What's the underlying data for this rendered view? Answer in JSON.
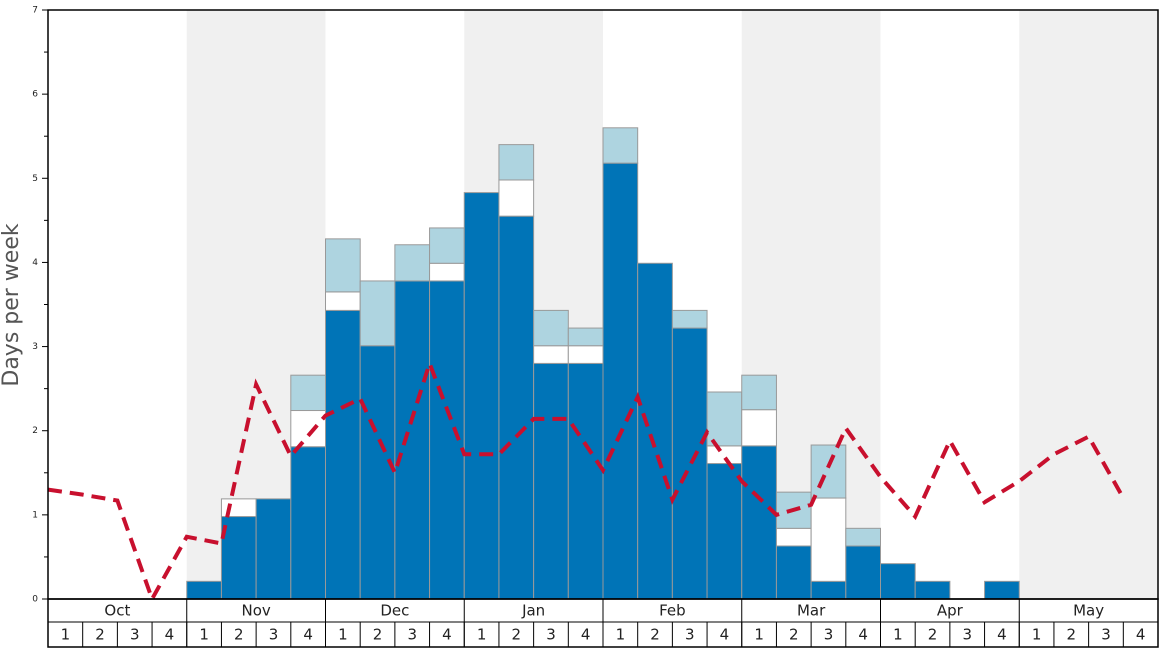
{
  "chart_data": {
    "type": "bar",
    "ylabel": "Days per week",
    "months": [
      "Oct",
      "Nov",
      "Dec",
      "Jan",
      "Feb",
      "Mar",
      "Apr",
      "May"
    ],
    "weeks": [
      "1",
      "2",
      "3",
      "4"
    ],
    "ylim": [
      0,
      7
    ],
    "yticks": [
      0,
      1,
      2,
      3,
      4,
      5,
      6,
      7
    ],
    "yminorticks": [
      0.5,
      1.5,
      2.5,
      3.5,
      4.5,
      5.5,
      6.5
    ],
    "shaded_color": "#f0f0f0",
    "series": [
      {
        "color": "#0074b7",
        "values": [
          0,
          0,
          0,
          0,
          0.21,
          0.98,
          1.19,
          1.81,
          3.43,
          3.01,
          3.78,
          3.78,
          4.83,
          4.55,
          2.8,
          2.8,
          5.18,
          3.99,
          3.22,
          1.61,
          1.82,
          0.63,
          0.21,
          0.63,
          0.42,
          0.21,
          0,
          0.21,
          0,
          0,
          0,
          0
        ]
      },
      {
        "color": "#ffffff",
        "values": [
          0,
          0,
          0,
          0,
          0,
          0.21,
          0,
          0.43,
          0.22,
          0,
          0,
          0.21,
          0,
          0.43,
          0.21,
          0.21,
          0,
          0,
          0,
          0.21,
          0.43,
          0.21,
          0.99,
          0,
          0,
          0,
          0,
          0,
          0,
          0,
          0,
          0
        ]
      },
      {
        "color": "#aed4e0",
        "values": [
          0,
          0,
          0,
          0,
          0,
          0,
          0,
          0.42,
          0.63,
          0.77,
          0.43,
          0.42,
          0,
          0.42,
          0.42,
          0.21,
          0.42,
          0,
          0.21,
          0.64,
          0.41,
          0.43,
          0.63,
          0.21,
          0,
          0,
          0,
          0,
          0,
          0,
          0,
          0
        ]
      }
    ],
    "line": {
      "type": "line",
      "color": "#c8102e",
      "values": [
        1.3,
        1.24,
        1.17,
        0,
        0.74,
        0.66,
        2.55,
        1.7,
        2.18,
        2.38,
        1.5,
        2.8,
        1.72,
        1.72,
        2.14,
        2.14,
        1.53,
        2.4,
        1.18,
        1.98,
        1.4,
        1.0,
        1.12,
        2.03,
        1.45,
        0.98,
        1.88,
        1.15,
        1.4,
        1.72,
        1.93,
        1.2
      ]
    }
  }
}
